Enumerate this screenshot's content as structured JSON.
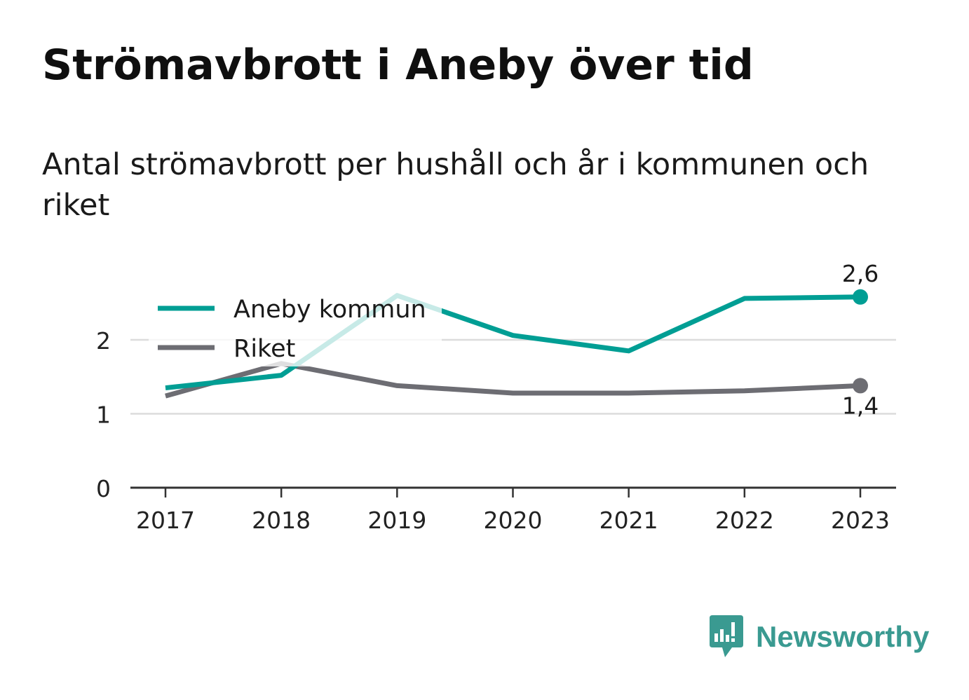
{
  "title": "Strömavbrott i Aneby över tid",
  "subtitle": "Antal strömavbrott per hushåll och år i kommunen och riket",
  "brand": {
    "name": "Newsworthy",
    "icon": "newsworthy-logo-icon",
    "color": "#3a9a91"
  },
  "chart_data": {
    "type": "line",
    "title": "Strömavbrott i Aneby över tid",
    "subtitle": "Antal strömavbrott per hushåll och år i kommunen och riket",
    "xlabel": "",
    "ylabel": "",
    "categories": [
      "2017",
      "2018",
      "2019",
      "2020",
      "2021",
      "2022",
      "2023"
    ],
    "yticks": [
      "0",
      "1",
      "2"
    ],
    "ylim": [
      0,
      3
    ],
    "grid": "horizontal",
    "legend": "top-left",
    "series": [
      {
        "name": "Aneby kommun",
        "color": "#009e94",
        "values": [
          1.35,
          1.52,
          2.6,
          2.06,
          1.85,
          2.56,
          2.58
        ],
        "end_label": "2,6"
      },
      {
        "name": "Riket",
        "color": "#6d6d73",
        "values": [
          1.24,
          1.68,
          1.38,
          1.28,
          1.28,
          1.31,
          1.38
        ],
        "end_label": "1,4"
      }
    ]
  }
}
